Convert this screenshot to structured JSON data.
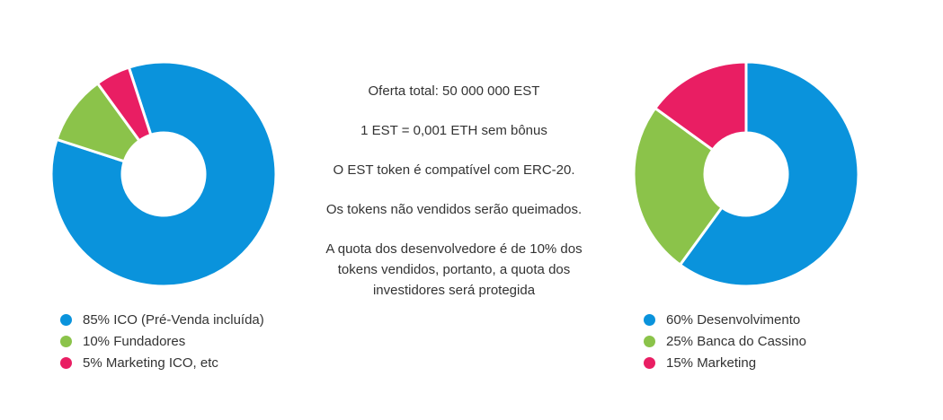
{
  "chart_data": [
    {
      "type": "pie",
      "donut": true,
      "categories": [
        "ICO (Pré-Venda incluída)",
        "Fundadores",
        "Marketing ICO, etc"
      ],
      "values": [
        85,
        10,
        5
      ],
      "colors": [
        "#0a93dc",
        "#8bc34a",
        "#e91e63"
      ],
      "legend": [
        {
          "label": "85% ICO (Pré-Venda incluída)",
          "color": "#0a93dc"
        },
        {
          "label": "10% Fundadores",
          "color": "#8bc34a"
        },
        {
          "label": "5% Marketing ICO, etc",
          "color": "#e91e63"
        }
      ],
      "legend_position": "bottom"
    },
    {
      "type": "pie",
      "donut": true,
      "categories": [
        "Desenvolvimento",
        "Banca do Cassino",
        "Marketing"
      ],
      "values": [
        60,
        25,
        15
      ],
      "colors": [
        "#0a93dc",
        "#8bc34a",
        "#e91e63"
      ],
      "legend": [
        {
          "label": "60% Desenvolvimento",
          "color": "#0a93dc"
        },
        {
          "label": "25% Banca do Cassino",
          "color": "#8bc34a"
        },
        {
          "label": "15% Marketing",
          "color": "#e91e63"
        }
      ],
      "legend_position": "bottom"
    }
  ],
  "center": {
    "line1": "Oferta total: 50 000 000 EST",
    "line2": "1 EST = 0,001 ETH sem bônus",
    "line3": "O EST token é compatível com ERC-20.",
    "line4": "Os tokens não vendidos serão queimados.",
    "line5a": "A quota dos desenvolvedore é de 10% dos",
    "line5b": "tokens vendidos, portanto, a quota dos",
    "line5c": "investidores será protegida"
  }
}
